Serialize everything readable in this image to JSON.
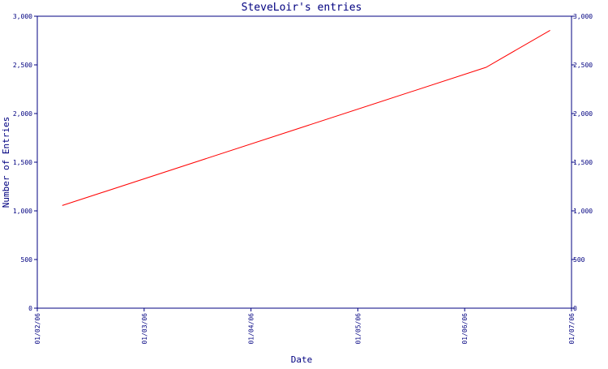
{
  "colors": {
    "axis": "#000080",
    "text": "#000080",
    "series": "#ff0000",
    "background": "#ffffff"
  },
  "chart_data": {
    "type": "line",
    "title": "SteveLoir's entries",
    "xlabel": "Date",
    "ylabel": "Number of Entries",
    "x_ticks": [
      "01/02/06",
      "01/03/06",
      "01/04/06",
      "01/05/06",
      "01/06/06",
      "01/07/06"
    ],
    "y_ticks": [
      "0",
      "500",
      "1,000",
      "1,500",
      "2,000",
      "2,500",
      "3,000"
    ],
    "ylim": [
      0,
      3000
    ],
    "xlim": [
      "2006-02-01",
      "2006-07-01"
    ],
    "grid": false,
    "series": [
      {
        "x": [
          "2006-02-08",
          "2006-06-07",
          "2006-06-25"
        ],
        "y": [
          1055,
          2475,
          2855
        ]
      }
    ]
  }
}
